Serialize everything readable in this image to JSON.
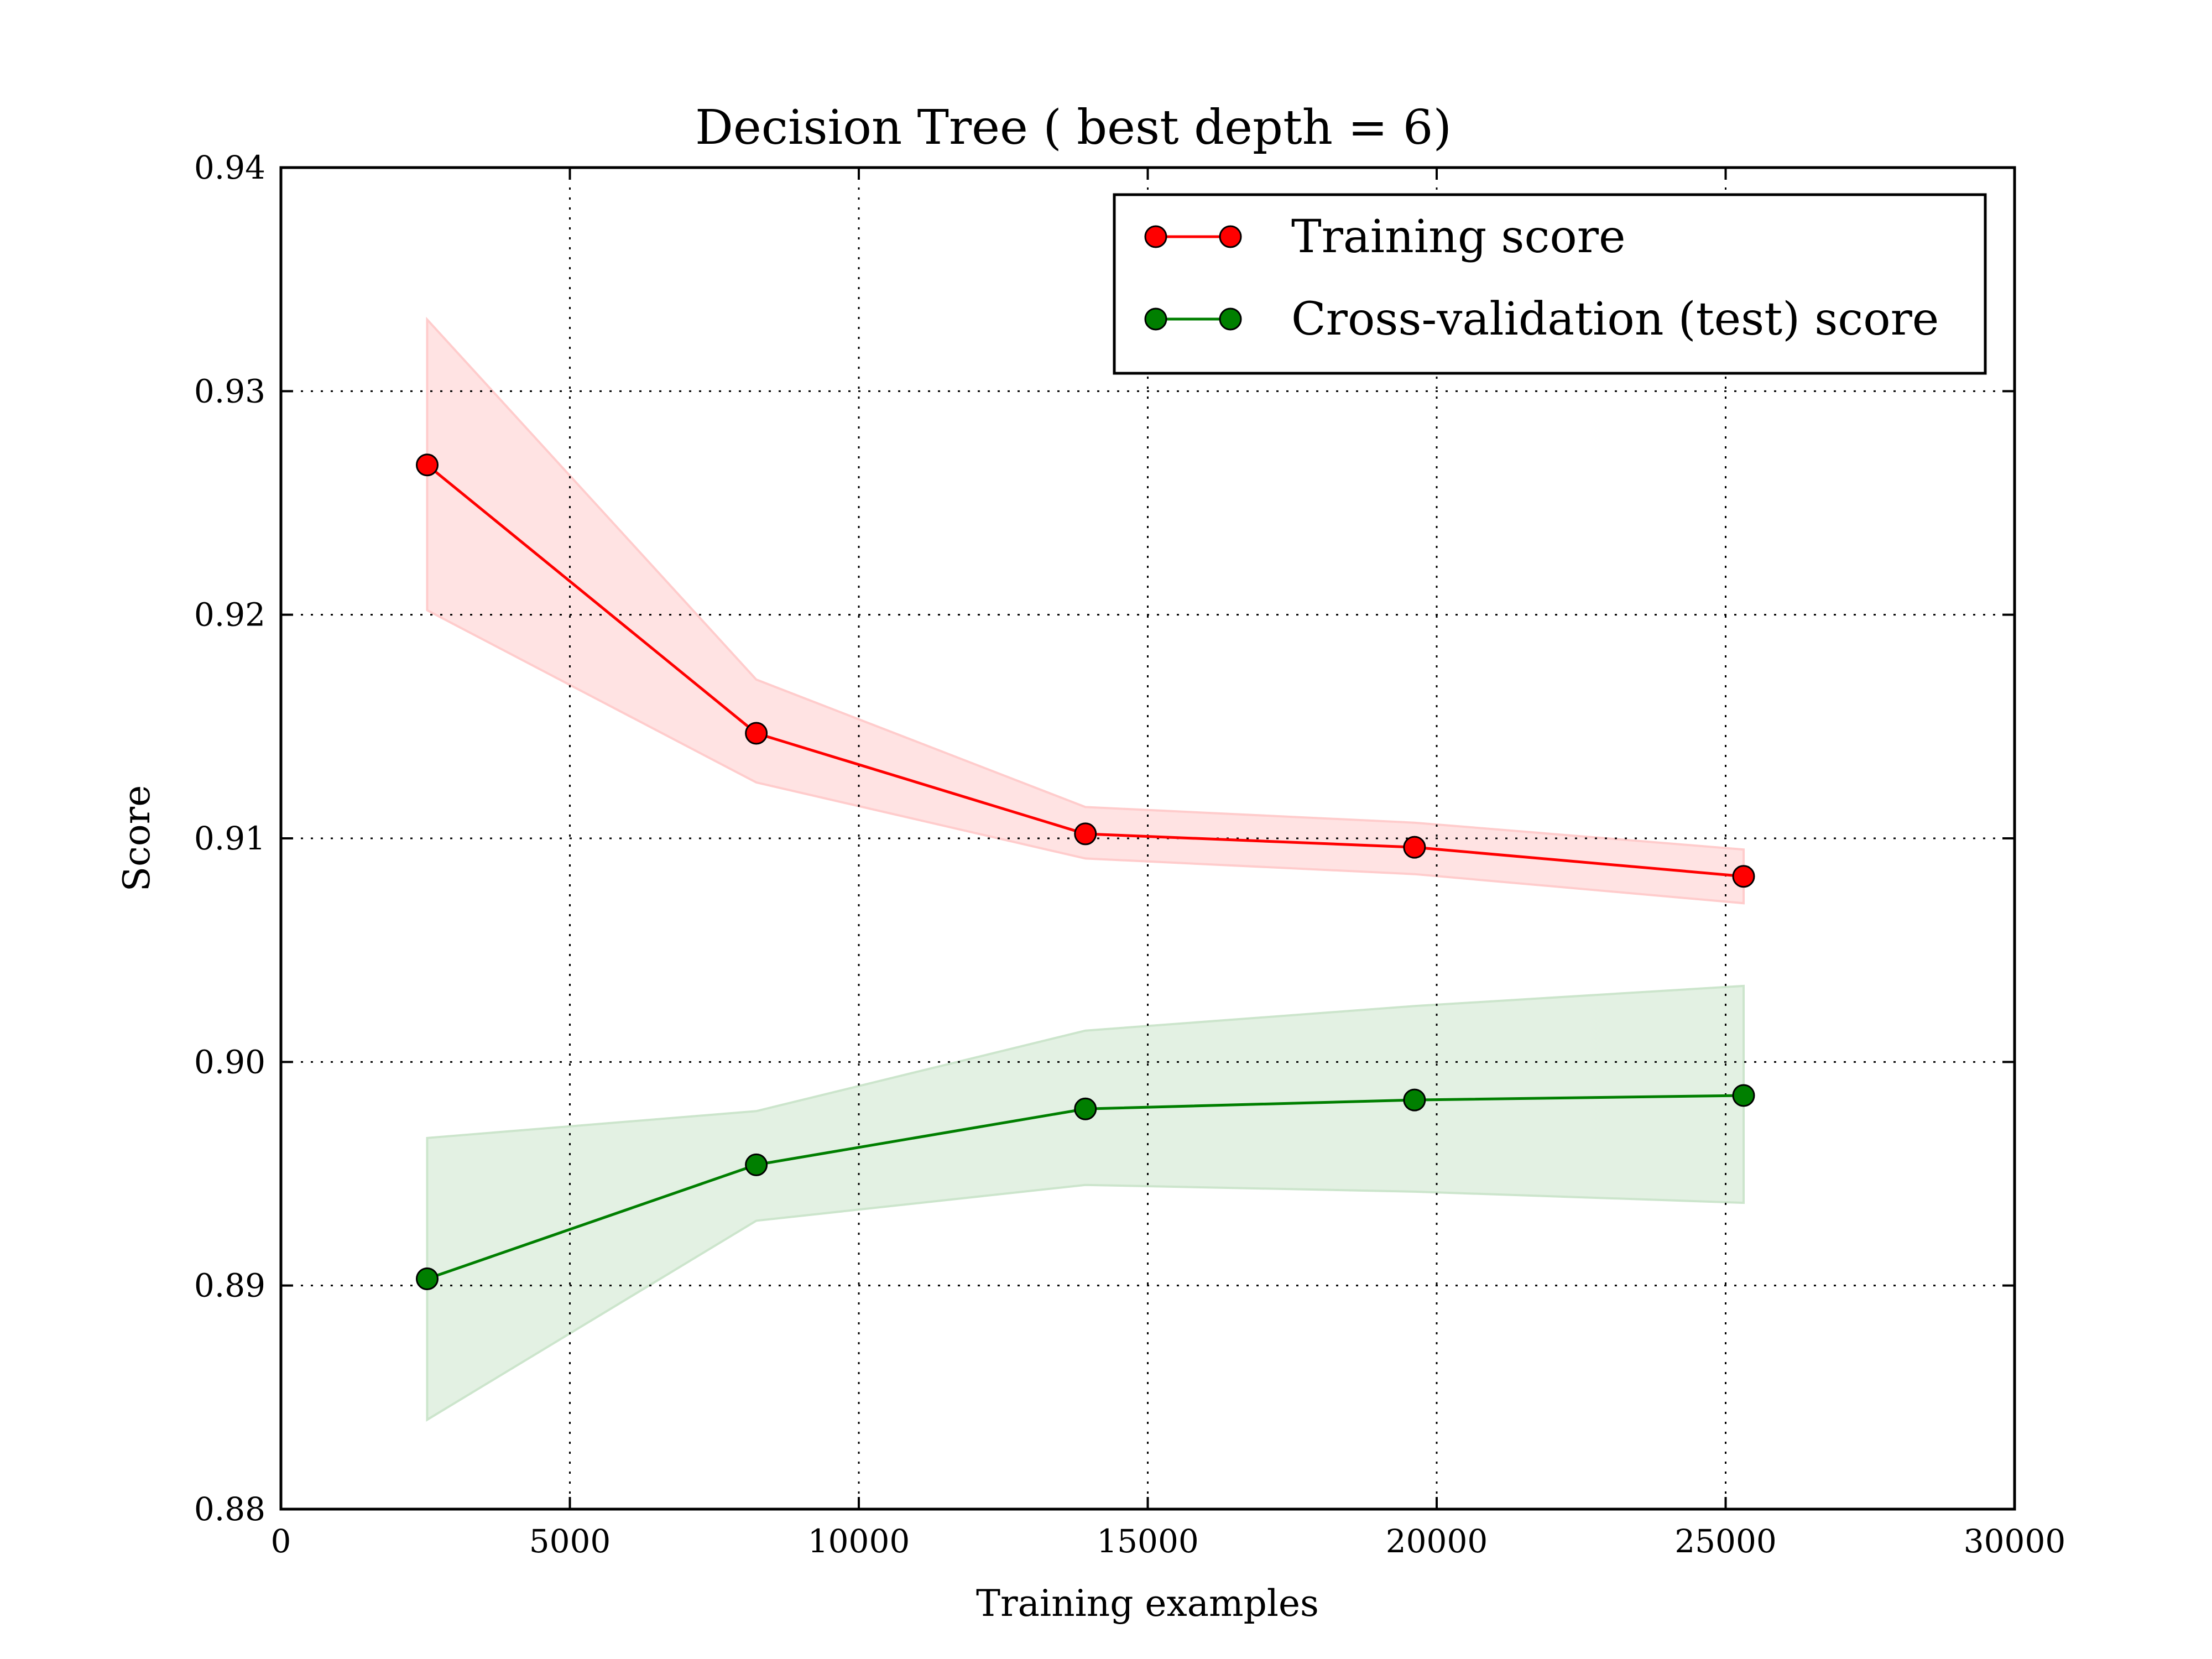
{
  "chart_data": {
    "type": "line",
    "title": "Decision Tree ( best depth = 6)",
    "xlabel": "Training examples",
    "ylabel": "Score",
    "xlim": [
      0,
      30000
    ],
    "ylim": [
      0.88,
      0.94
    ],
    "xticks": [
      0,
      5000,
      10000,
      15000,
      20000,
      25000,
      30000
    ],
    "xtick_labels": [
      "0",
      "5000",
      "10000",
      "15000",
      "20000",
      "25000",
      "30000"
    ],
    "yticks": [
      0.88,
      0.89,
      0.9,
      0.91,
      0.92,
      0.93,
      0.94
    ],
    "ytick_labels": [
      "0.88",
      "0.89",
      "0.90",
      "0.91",
      "0.92",
      "0.93",
      "0.94"
    ],
    "grid": true,
    "legend_position": "top-right",
    "x": [
      2531,
      8226,
      13921,
      19616,
      25311
    ],
    "series": [
      {
        "name": "Training score",
        "color": "#ff0000",
        "band_color": "#ffcccc",
        "values": [
          0.9267,
          0.9147,
          0.9102,
          0.9096,
          0.9083
        ],
        "upper": [
          0.9332,
          0.9171,
          0.9114,
          0.9107,
          0.9095
        ],
        "lower": [
          0.9202,
          0.9125,
          0.9091,
          0.9084,
          0.9071
        ]
      },
      {
        "name": "Cross-validation (test) score",
        "color": "#007f00",
        "band_color": "#cce5cc",
        "values": [
          0.8903,
          0.8954,
          0.8979,
          0.8983,
          0.8985
        ],
        "upper": [
          0.8966,
          0.8978,
          0.9014,
          0.9025,
          0.9034
        ],
        "lower": [
          0.884,
          0.8929,
          0.8945,
          0.8942,
          0.8937
        ]
      }
    ]
  }
}
